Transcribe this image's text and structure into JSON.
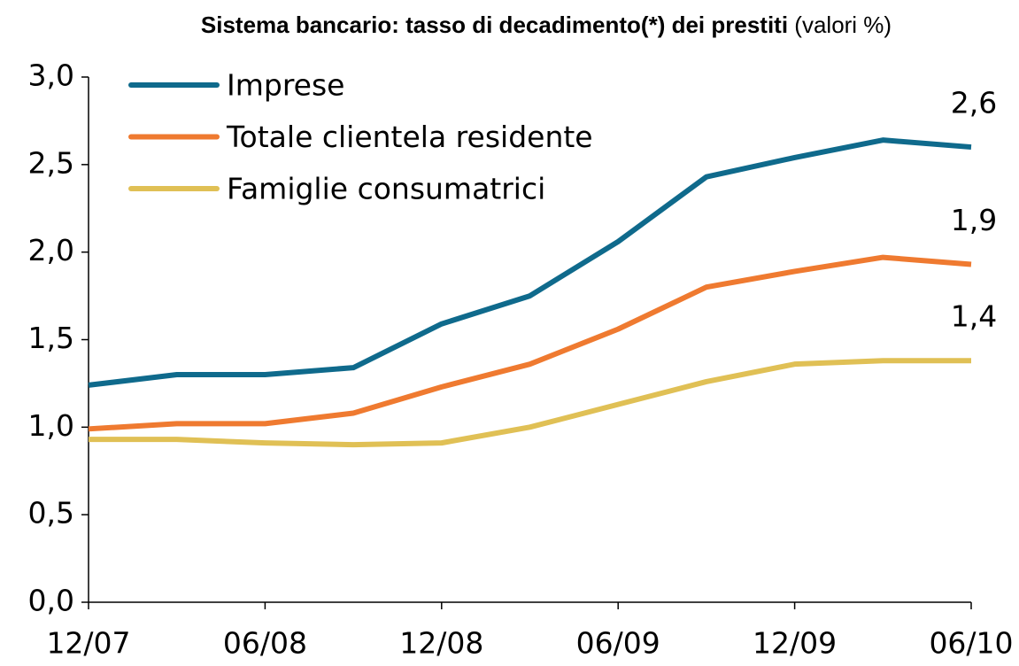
{
  "chart_data": {
    "type": "line",
    "title": "Sistema bancario: tasso di decadimento(*) dei prestiti",
    "subtitle": "(valori %)",
    "categories": [
      "12/07",
      null,
      "06/08",
      null,
      "12/08",
      null,
      "06/09",
      null,
      "12/09",
      null,
      "06/10"
    ],
    "series": [
      {
        "name": "Imprese",
        "color": "#0f6a8c",
        "values": [
          1.24,
          1.3,
          1.3,
          1.34,
          1.59,
          1.75,
          2.06,
          2.43,
          2.54,
          2.64,
          2.6
        ],
        "value_labels": [
          null,
          null,
          null,
          null,
          null,
          null,
          null,
          null,
          null,
          null,
          "2,6"
        ]
      },
      {
        "name": "Totale clientela residente",
        "color": "#ef7a30",
        "values": [
          0.99,
          1.02,
          1.02,
          1.08,
          1.23,
          1.36,
          1.56,
          1.8,
          1.89,
          1.97,
          1.93
        ],
        "value_labels": [
          null,
          null,
          null,
          null,
          null,
          null,
          null,
          null,
          null,
          null,
          "1,9"
        ]
      },
      {
        "name": "Famiglie consumatrici",
        "color": "#e0c055",
        "values": [
          0.93,
          0.93,
          0.91,
          0.9,
          0.91,
          1.0,
          1.13,
          1.26,
          1.36,
          1.38,
          1.38
        ],
        "value_labels": [
          null,
          null,
          null,
          null,
          null,
          null,
          null,
          null,
          null,
          null,
          "1,4"
        ]
      }
    ],
    "ylim": [
      0,
      3
    ],
    "yticks": [
      {
        "value": 0,
        "label": "0,0"
      },
      {
        "value": 0.5,
        "label": "0,5"
      },
      {
        "value": 1,
        "label": "1,0"
      },
      {
        "value": 1.5,
        "label": "1,5"
      },
      {
        "value": 2,
        "label": "2,0"
      },
      {
        "value": 2.5,
        "label": "2,5"
      },
      {
        "value": 3,
        "label": "3,0"
      }
    ],
    "grid": false,
    "legend": "top-left"
  }
}
